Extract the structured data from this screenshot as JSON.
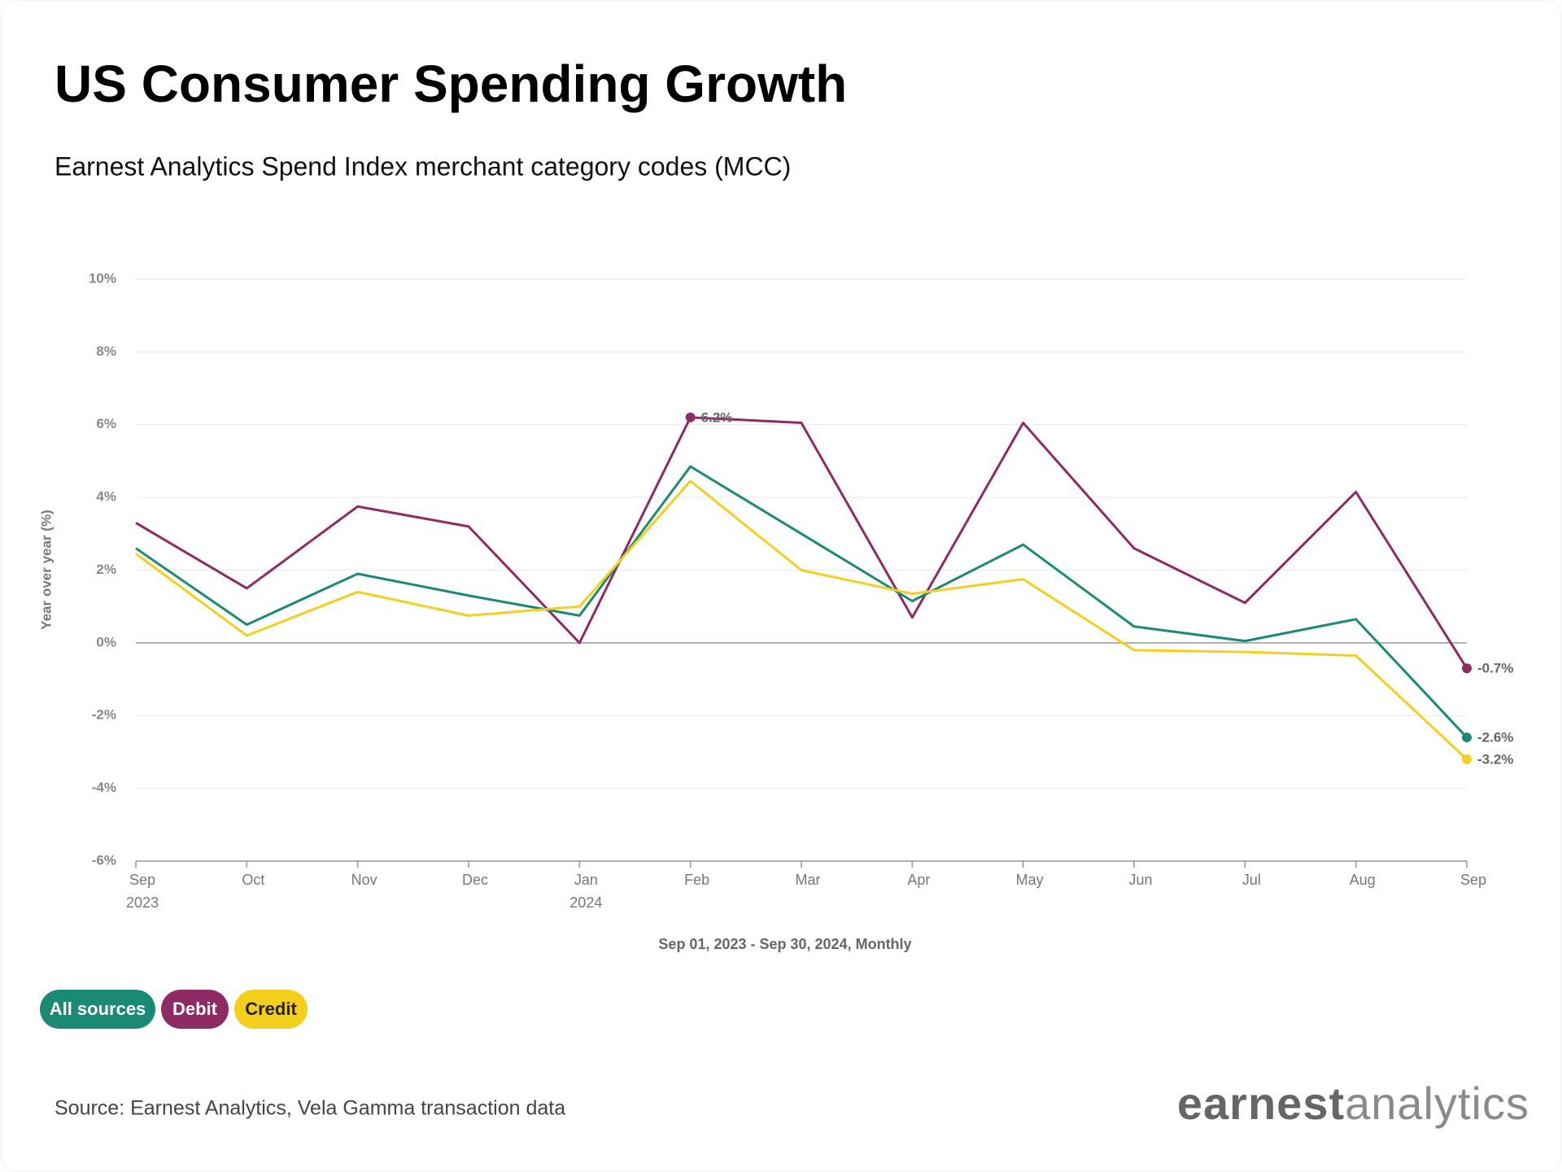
{
  "chart_data": {
    "type": "line",
    "title": "US Consumer Spending Growth",
    "subtitle": "Earnest Analytics Spend Index merchant category codes (MCC)",
    "y_label": "Year over year (%)",
    "x_label": "Sep 01, 2023 - Sep 30, 2024, Monthly",
    "categories": [
      "Sep",
      "Oct",
      "Nov",
      "Dec",
      "Jan",
      "Feb",
      "Mar",
      "Apr",
      "May",
      "Jun",
      "Jul",
      "Aug",
      "Sep"
    ],
    "category_years": [
      "2023",
      null,
      null,
      null,
      "2024",
      null,
      null,
      null,
      null,
      null,
      null,
      null,
      null
    ],
    "ylim": [
      -6,
      10
    ],
    "yticks": [
      {
        "value": -6,
        "label": "-6%"
      },
      {
        "value": -4,
        "label": "-4%"
      },
      {
        "value": -2,
        "label": "-2%"
      },
      {
        "value": 0,
        "label": "0%"
      },
      {
        "value": 2,
        "label": "2%"
      },
      {
        "value": 4,
        "label": "4%"
      },
      {
        "value": 6,
        "label": "6%"
      },
      {
        "value": 8,
        "label": "8%"
      },
      {
        "value": 10,
        "label": "10%"
      }
    ],
    "grid": true,
    "series": [
      {
        "name": "All sources",
        "color": "#1a8a74",
        "values": [
          2.6,
          0.5,
          1.9,
          1.3,
          0.75,
          4.85,
          3.0,
          1.15,
          2.7,
          0.45,
          0.05,
          0.65,
          -2.6
        ],
        "value_labels": [
          null,
          null,
          null,
          null,
          null,
          null,
          null,
          null,
          null,
          null,
          null,
          null,
          "-2.6%"
        ]
      },
      {
        "name": "Debit",
        "color": "#8e2a64",
        "values": [
          3.3,
          1.5,
          3.75,
          3.2,
          0.0,
          6.2,
          6.05,
          0.7,
          6.05,
          2.6,
          1.1,
          4.15,
          -0.7
        ],
        "value_labels": [
          null,
          null,
          null,
          null,
          null,
          "6.2%",
          null,
          null,
          null,
          null,
          null,
          null,
          "-0.7%"
        ]
      },
      {
        "name": "Credit",
        "color": "#f5cf1d",
        "values": [
          2.45,
          0.2,
          1.4,
          0.75,
          1.0,
          4.45,
          2.0,
          1.35,
          1.75,
          -0.2,
          -0.25,
          -0.35,
          -3.2
        ],
        "value_labels": [
          null,
          null,
          null,
          null,
          null,
          null,
          null,
          null,
          null,
          null,
          null,
          null,
          "-3.2%"
        ]
      }
    ],
    "source": "Source: Earnest Analytics, Vela Gamma transaction data",
    "logo": {
      "first": "earnest",
      "second": "analytics"
    }
  }
}
